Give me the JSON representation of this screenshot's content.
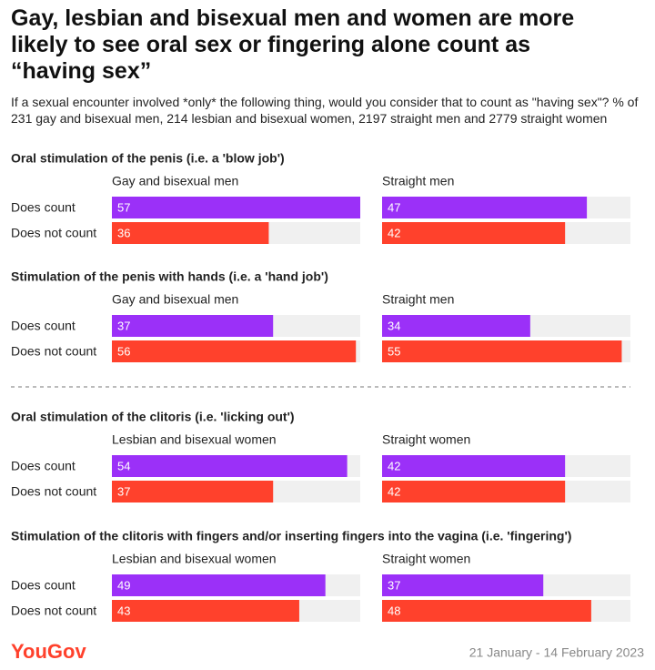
{
  "header": {
    "title": "Gay, lesbian and bisexual men and women are more likely to see oral sex or fingering alone count as “having sex”",
    "subtitle": "If a sexual encounter involved *only* the following thing, would you consider that to count as \"having sex\"? % of 231 gay and bisexual men, 214 lesbian and bisexual women, 2197 straight men and 2779 straight women"
  },
  "chart_data": [
    {
      "type": "bar",
      "heading": "Oral stimulation of the penis (i.e. a 'blow job')",
      "title": "Gay and bisexual men",
      "categories": [
        "Does count",
        "Does not count"
      ],
      "values": [
        57,
        36
      ],
      "colors": [
        "#9b30f8",
        "#ff412c"
      ],
      "xlim": [
        0,
        57
      ]
    },
    {
      "type": "bar",
      "title": "Straight men",
      "categories": [
        null,
        null
      ],
      "values": [
        47,
        42
      ],
      "colors": [
        "#9b30f8",
        "#ff412c"
      ],
      "xlim": [
        0,
        57
      ]
    },
    {
      "type": "bar",
      "heading": "Stimulation of the penis with hands (i.e. a 'hand job')",
      "title": "Gay and bisexual men",
      "categories": [
        "Does count",
        "Does not count"
      ],
      "values": [
        37,
        56
      ],
      "colors": [
        "#9b30f8",
        "#ff412c"
      ],
      "xlim": [
        0,
        57
      ]
    },
    {
      "type": "bar",
      "title": "Straight men",
      "categories": [
        null,
        null
      ],
      "values": [
        34,
        55
      ],
      "colors": [
        "#9b30f8",
        "#ff412c"
      ],
      "xlim": [
        0,
        57
      ]
    },
    {
      "type": "bar",
      "heading": "Oral stimulation of the clitoris (i.e. 'licking out')",
      "title": "Lesbian and bisexual women",
      "categories": [
        "Does count",
        "Does not count"
      ],
      "values": [
        54,
        37
      ],
      "colors": [
        "#9b30f8",
        "#ff412c"
      ],
      "xlim": [
        0,
        57
      ]
    },
    {
      "type": "bar",
      "title": "Straight women",
      "categories": [
        null,
        null
      ],
      "values": [
        42,
        42
      ],
      "colors": [
        "#9b30f8",
        "#ff412c"
      ],
      "xlim": [
        0,
        57
      ]
    },
    {
      "type": "bar",
      "heading": "Stimulation of the clitoris with fingers and/or inserting fingers into the vagina (i.e. 'fingering')",
      "title": "Lesbian and bisexual women",
      "categories": [
        "Does count",
        "Does not count"
      ],
      "values": [
        49,
        43
      ],
      "colors": [
        "#9b30f8",
        "#ff412c"
      ],
      "xlim": [
        0,
        57
      ]
    },
    {
      "type": "bar",
      "title": "Straight women",
      "categories": [
        null,
        null
      ],
      "values": [
        37,
        48
      ],
      "colors": [
        "#9b30f8",
        "#ff412c"
      ],
      "xlim": [
        0,
        57
      ]
    }
  ],
  "footer": {
    "brand": "YouGov",
    "date": "21 January - 14 February 2023"
  }
}
